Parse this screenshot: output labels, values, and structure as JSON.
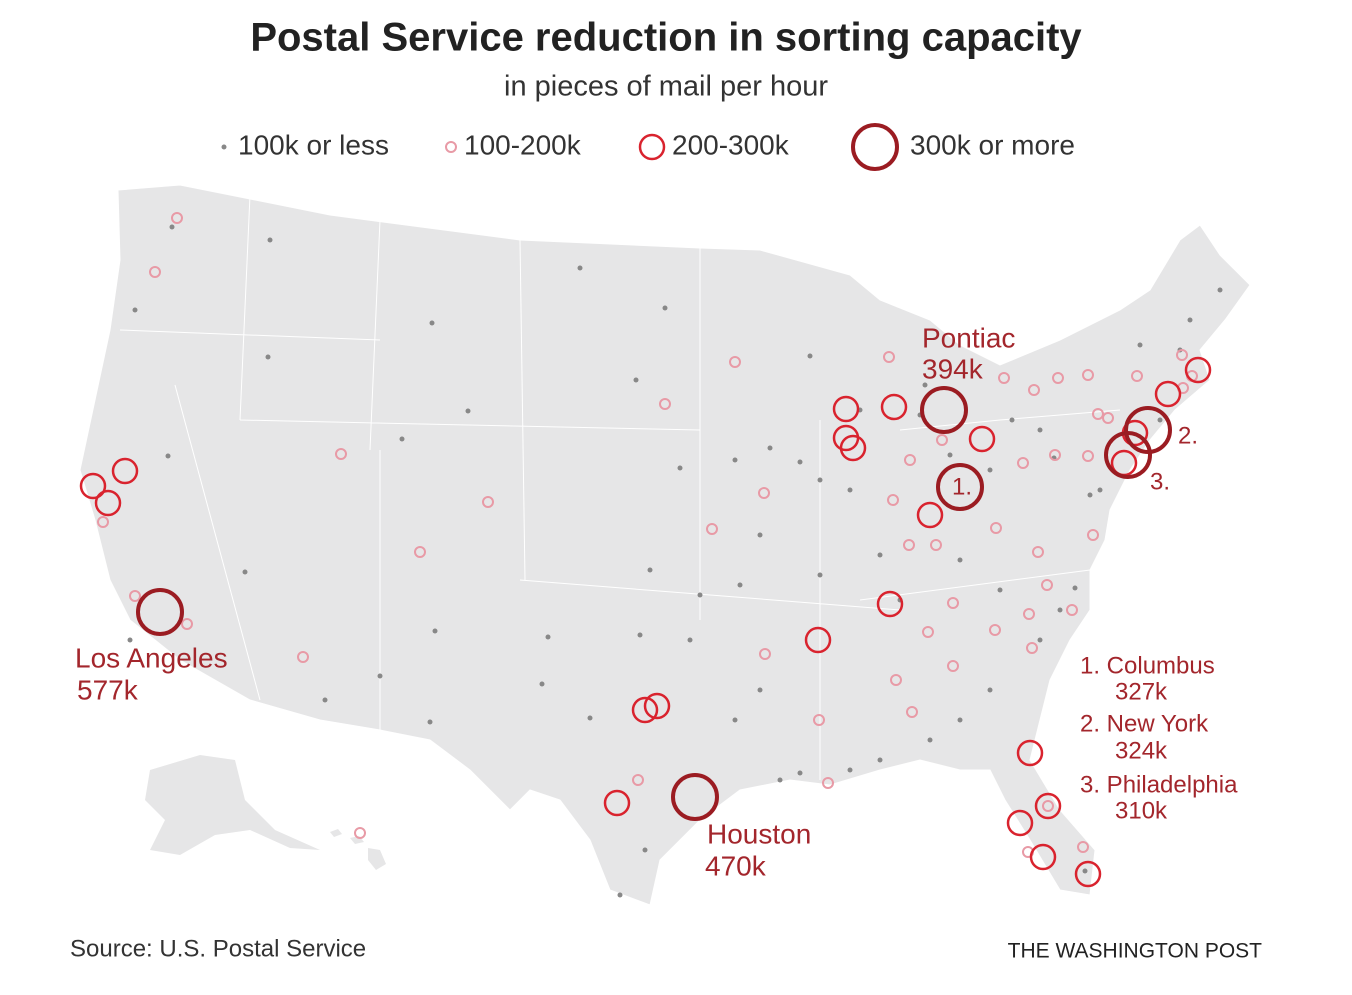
{
  "header": {
    "title": "Postal Service reduction in sorting capacity",
    "subtitle": "in pieces of mail per hour"
  },
  "legend": [
    {
      "label": "100k or less"
    },
    {
      "label": "100-200k"
    },
    {
      "label": "200-300k"
    },
    {
      "label": "300k or more"
    }
  ],
  "annotations": [
    {
      "name": "Los Angeles",
      "value": "577k"
    },
    {
      "name": "Houston",
      "value": "470k"
    },
    {
      "name": "Pontiac",
      "value": "394k"
    }
  ],
  "map_markers": [
    "1.",
    "2.",
    "3."
  ],
  "notes": [
    {
      "name": "1. Columbus",
      "value": "327k"
    },
    {
      "name": "2. New York",
      "value": "324k"
    },
    {
      "name": "3. Philadelphia",
      "value": "310k"
    }
  ],
  "footer": {
    "source": "Source: U.S. Postal Service",
    "credit": "THE WASHINGTON POST"
  }
}
